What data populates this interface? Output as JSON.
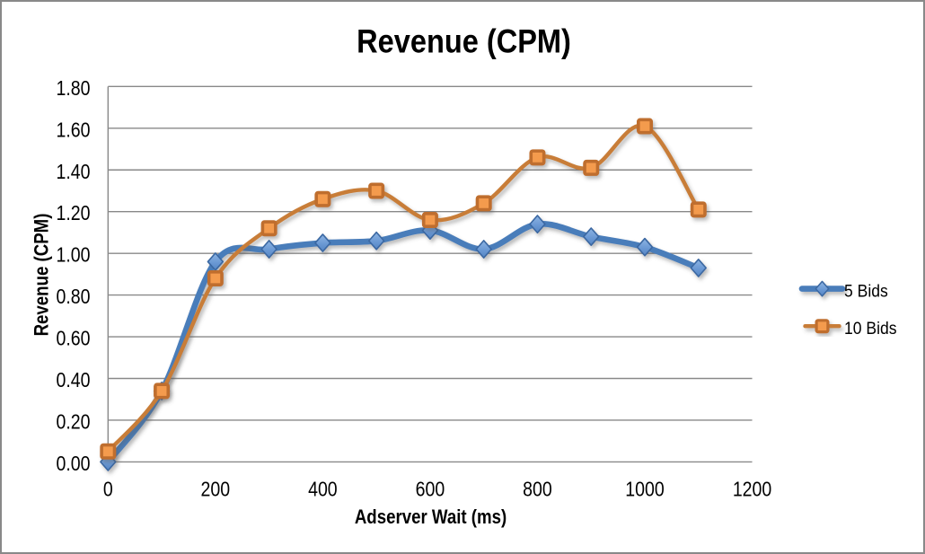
{
  "window": {
    "background": "#ffffff",
    "frame_border_color": "#898989"
  },
  "chart_data": {
    "type": "line",
    "title": "Revenue (CPM)",
    "xlabel": "Adserver Wait (ms)",
    "ylabel": "Revenue (CPM)",
    "x": [
      0,
      100,
      200,
      300,
      400,
      500,
      600,
      700,
      800,
      900,
      1000,
      1100
    ],
    "series": [
      {
        "name": "5 Bids",
        "marker": "diamond",
        "line_color": "#4a7dba",
        "marker_fill": "#6b99d4",
        "marker_edge": "#3a67a2",
        "values": [
          0.0,
          0.34,
          0.96,
          1.02,
          1.05,
          1.06,
          1.11,
          1.02,
          1.14,
          1.08,
          1.03,
          0.93
        ]
      },
      {
        "name": "10 Bids",
        "marker": "square",
        "line_color": "#c87d37",
        "marker_fill": "#f49b4d",
        "marker_edge": "#bf6e2d",
        "values": [
          0.05,
          0.34,
          0.88,
          1.12,
          1.26,
          1.3,
          1.16,
          1.24,
          1.46,
          1.41,
          1.61,
          1.21
        ]
      }
    ],
    "xlim": [
      0,
      1200
    ],
    "ylim": [
      0.0,
      1.8
    ],
    "x_ticks": [
      0,
      200,
      400,
      600,
      800,
      1000,
      1200
    ],
    "y_ticks": [
      "0.00",
      "0.20",
      "0.40",
      "0.60",
      "0.80",
      "1.00",
      "1.20",
      "1.40",
      "1.60",
      "1.80"
    ],
    "grid": "horizontal",
    "gridline_color": "#898989",
    "axis_line_color": "#898989",
    "legend_position": "right",
    "smoothed": true
  }
}
